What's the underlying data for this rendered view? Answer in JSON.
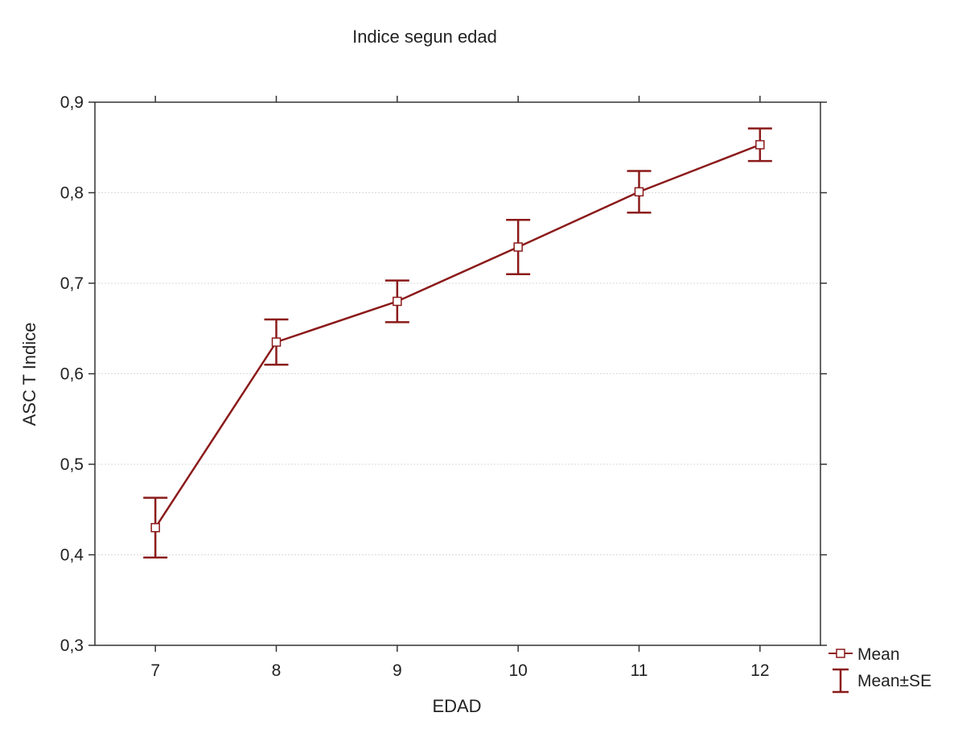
{
  "chart_data": {
    "type": "line",
    "title": "Indice segun edad",
    "xlabel": "EDAD",
    "ylabel": "ASC T Indice",
    "categories": [
      "7",
      "8",
      "9",
      "10",
      "11",
      "12"
    ],
    "series": [
      {
        "name": "Mean",
        "values": [
          0.43,
          0.635,
          0.68,
          0.74,
          0.801,
          0.853
        ],
        "se": [
          0.033,
          0.025,
          0.023,
          0.03,
          0.023,
          0.018
        ]
      }
    ],
    "error_bar_label": "Mean±SE",
    "ylim": [
      0.3,
      0.9
    ],
    "yticks": [
      0.3,
      0.4,
      0.5,
      0.6,
      0.7,
      0.8,
      0.9
    ],
    "ytick_labels": [
      "0,3",
      "0,4",
      "0,5",
      "0,6",
      "0,7",
      "0,8",
      "0,9"
    ],
    "grid": true,
    "legend_position": "right-bottom",
    "colors": {
      "series": "#8b1a1a",
      "axis": "#333333",
      "grid": "#d9d9d9"
    }
  }
}
